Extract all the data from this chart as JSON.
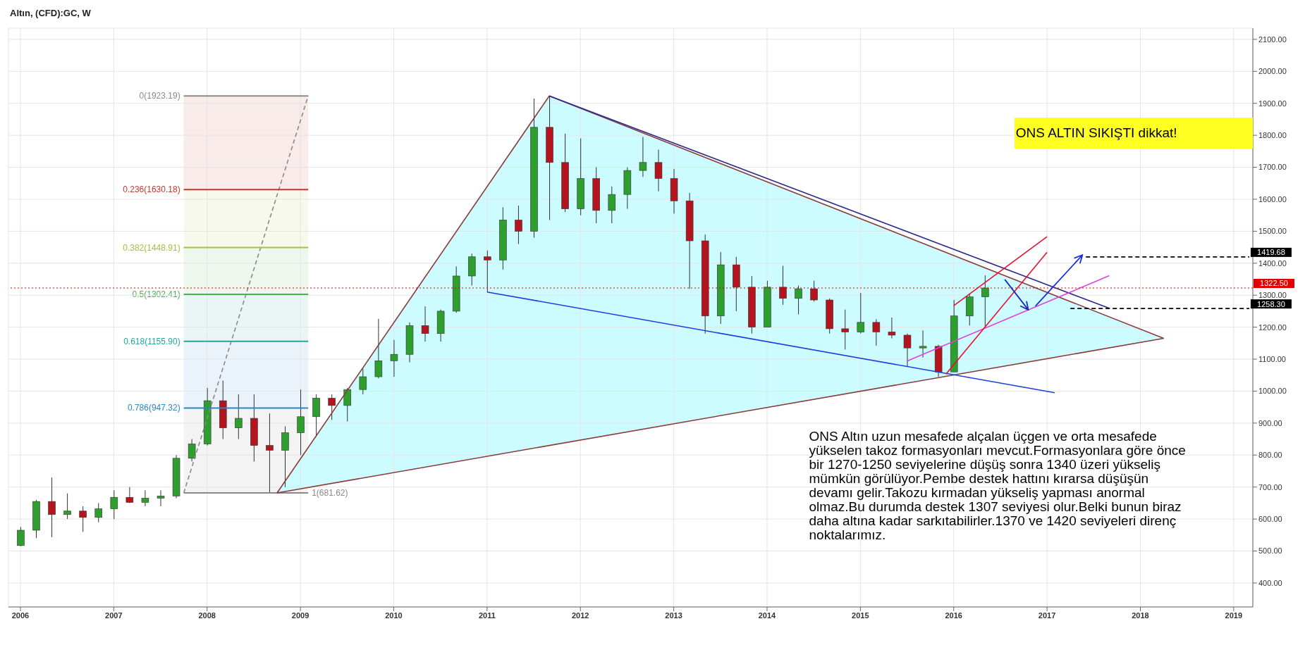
{
  "chart_data": {
    "type": "candlestick",
    "title": "Altın, (CFD):GC, W",
    "x": [
      "2006-01",
      "2006-03",
      "2006-05",
      "2006-07",
      "2006-09",
      "2006-11",
      "2007-01",
      "2007-03",
      "2007-05",
      "2007-07",
      "2007-09",
      "2007-11",
      "2008-01",
      "2008-03",
      "2008-05",
      "2008-07",
      "2008-09",
      "2008-11",
      "2009-01",
      "2009-03",
      "2009-05",
      "2009-07",
      "2009-09",
      "2009-11",
      "2010-01",
      "2010-03",
      "2010-05",
      "2010-07",
      "2010-09",
      "2010-11",
      "2011-01",
      "2011-03",
      "2011-05",
      "2011-07",
      "2011-09",
      "2011-11",
      "2012-01",
      "2012-03",
      "2012-05",
      "2012-07",
      "2012-09",
      "2012-11",
      "2013-01",
      "2013-03",
      "2013-05",
      "2013-07",
      "2013-09",
      "2013-11",
      "2014-01",
      "2014-03",
      "2014-05",
      "2014-07",
      "2014-09",
      "2014-11",
      "2015-01",
      "2015-03",
      "2015-05",
      "2015-07",
      "2015-09",
      "2015-11",
      "2016-01",
      "2016-03",
      "2016-05"
    ],
    "ohlc": [
      [
        517,
        575,
        515,
        565
      ],
      [
        565,
        660,
        540,
        655
      ],
      [
        655,
        730,
        543,
        614
      ],
      [
        614,
        680,
        600,
        625
      ],
      [
        625,
        640,
        560,
        605
      ],
      [
        605,
        650,
        590,
        632
      ],
      [
        632,
        690,
        600,
        668
      ],
      [
        668,
        700,
        650,
        652
      ],
      [
        652,
        690,
        640,
        665
      ],
      [
        665,
        690,
        640,
        672
      ],
      [
        672,
        800,
        665,
        790
      ],
      [
        790,
        850,
        780,
        835
      ],
      [
        835,
        1010,
        830,
        970
      ],
      [
        970,
        1033,
        850,
        885
      ],
      [
        885,
        990,
        850,
        915
      ],
      [
        915,
        990,
        780,
        830
      ],
      [
        830,
        930,
        680,
        815
      ],
      [
        815,
        890,
        700,
        870
      ],
      [
        870,
        1005,
        800,
        920
      ],
      [
        920,
        990,
        860,
        978
      ],
      [
        978,
        990,
        910,
        955
      ],
      [
        955,
        1010,
        905,
        1005
      ],
      [
        1005,
        1070,
        990,
        1045
      ],
      [
        1045,
        1226,
        1040,
        1095
      ],
      [
        1095,
        1160,
        1045,
        1115
      ],
      [
        1115,
        1215,
        1090,
        1205
      ],
      [
        1205,
        1265,
        1155,
        1180
      ],
      [
        1180,
        1255,
        1155,
        1250
      ],
      [
        1250,
        1390,
        1245,
        1360
      ],
      [
        1360,
        1430,
        1330,
        1420
      ],
      [
        1420,
        1440,
        1310,
        1410
      ],
      [
        1410,
        1575,
        1380,
        1535
      ],
      [
        1535,
        1580,
        1460,
        1500
      ],
      [
        1500,
        1915,
        1480,
        1825
      ],
      [
        1825,
        1923,
        1535,
        1715
      ],
      [
        1715,
        1805,
        1560,
        1570
      ],
      [
        1570,
        1790,
        1550,
        1665
      ],
      [
        1665,
        1700,
        1525,
        1565
      ],
      [
        1565,
        1640,
        1525,
        1615
      ],
      [
        1615,
        1700,
        1570,
        1690
      ],
      [
        1690,
        1795,
        1670,
        1715
      ],
      [
        1715,
        1755,
        1625,
        1665
      ],
      [
        1665,
        1695,
        1555,
        1595
      ],
      [
        1595,
        1620,
        1320,
        1470
      ],
      [
        1470,
        1490,
        1180,
        1235
      ],
      [
        1235,
        1435,
        1210,
        1395
      ],
      [
        1395,
        1420,
        1250,
        1325
      ],
      [
        1325,
        1360,
        1180,
        1200
      ],
      [
        1200,
        1345,
        1200,
        1325
      ],
      [
        1325,
        1392,
        1270,
        1290
      ],
      [
        1290,
        1330,
        1240,
        1320
      ],
      [
        1320,
        1345,
        1280,
        1285
      ],
      [
        1285,
        1290,
        1180,
        1195
      ],
      [
        1195,
        1255,
        1130,
        1185
      ],
      [
        1185,
        1307,
        1180,
        1215
      ],
      [
        1215,
        1225,
        1142,
        1185
      ],
      [
        1185,
        1230,
        1165,
        1175
      ],
      [
        1175,
        1180,
        1077,
        1135
      ],
      [
        1135,
        1190,
        1105,
        1140
      ],
      [
        1140,
        1145,
        1045,
        1060
      ],
      [
        1060,
        1285,
        1060,
        1235
      ],
      [
        1235,
        1305,
        1205,
        1295
      ],
      [
        1295,
        1362,
        1200,
        1322.5
      ]
    ],
    "series": [
      {
        "type": "line",
        "color": "#8a8a8a",
        "line_style": "dashed",
        "x": [
          "2007-10",
          "2009-02"
        ],
        "values": [
          681.62,
          1923.19
        ]
      },
      {
        "type": "line",
        "name": "0(1923.19)",
        "color": "#8a8a8a",
        "x": [
          "2007-10",
          "2009-02"
        ],
        "values": [
          1923.19,
          1923.19
        ]
      },
      {
        "type": "line",
        "name": "0.236(1630.18)",
        "color": "#c0392b",
        "x": [
          "2007-10",
          "2009-02"
        ],
        "values": [
          1630.18,
          1630.18
        ]
      },
      {
        "type": "line",
        "name": "0.382(1448.91)",
        "color": "#a4c339",
        "x": [
          "2007-10",
          "2009-02"
        ],
        "values": [
          1448.91,
          1448.91
        ]
      },
      {
        "type": "line",
        "name": "0.5(1302.41)",
        "color": "#4caf50",
        "x": [
          "2007-10",
          "2009-02"
        ],
        "values": [
          1302.41,
          1302.41
        ]
      },
      {
        "type": "line",
        "name": "0.618(1155.90)",
        "color": "#26a69a",
        "x": [
          "2007-10",
          "2009-02"
        ],
        "values": [
          1155.9,
          1155.9
        ]
      },
      {
        "type": "line",
        "name": "0.786(947.32)",
        "color": "#2e86c1",
        "x": [
          "2007-10",
          "2009-02"
        ],
        "values": [
          947.32,
          947.32
        ]
      },
      {
        "type": "line",
        "name": "1(681.62)",
        "color": "#8a8a8a",
        "x": [
          "2007-10",
          "2009-02"
        ],
        "values": [
          681.62,
          681.62
        ]
      },
      {
        "type": "line",
        "color": "#8b3a3a",
        "x": [
          "2008-10",
          "2011-09",
          "2018-04"
        ],
        "values": [
          681.62,
          1923.19,
          1165
        ]
      },
      {
        "type": "line",
        "color": "#8b3a3a",
        "x": [
          "2008-10",
          "2018-04"
        ],
        "values": [
          681.62,
          1165
        ]
      },
      {
        "type": "line",
        "color": "#2a2a8c",
        "x": [
          "2011-09",
          "2017-09"
        ],
        "values": [
          1923.19,
          1259
        ]
      },
      {
        "type": "line",
        "color": "#1a3fe0",
        "x": [
          "2011-01",
          "2017-02"
        ],
        "values": [
          1310,
          995
        ]
      },
      {
        "type": "line",
        "color": "#e040e0",
        "x": [
          "2015-07",
          "2017-09"
        ],
        "values": [
          1094,
          1361
        ]
      },
      {
        "type": "line",
        "color": "#e8102e",
        "x": [
          "2016-01",
          "2017-01"
        ],
        "values": [
          1267,
          1483
        ]
      },
      {
        "type": "line",
        "color": "#e8102e",
        "x": [
          "2015-12",
          "2017-01"
        ],
        "values": [
          1053,
          1434
        ]
      },
      {
        "type": "line",
        "color": "#000000",
        "line_style": "dashed",
        "x": [
          "2017-06",
          "2019-03"
        ],
        "values": [
          1419.68,
          1419.68
        ]
      },
      {
        "type": "line",
        "color": "#000000",
        "line_style": "dashed",
        "x": [
          "2017-04",
          "2019-03"
        ],
        "values": [
          1258.3,
          1258.3
        ]
      }
    ],
    "ref_lines": [
      {
        "axis": "y",
        "value": 1322.5,
        "label": "1322.50",
        "color": "#e00000",
        "line_style": "dotted"
      }
    ],
    "annotations": [
      "ONS ALTIN SIKIŞTI dikkat!",
      "ONS Altın uzun mesafede alçalan üçgen ve orta mesafede yükselen takoz formasyonları mevcut.Formasyonlara göre önce bir 1270-1250 seviyelerine düşüş sonra 1340 üzeri yükseliş mümkün görülüyor.Pembe destek hattını kırarsa düşüşün devamı gelir.Takozu kırmadan yükseliş yapması anormal olmaz.Bu durumda destek 1307 seviyesi olur.Belki bunun biraz daha altına kadar sarkıtabilirler.1370 ve 1420 seviyeleri direnç noktalarımız.",
      {
        "text": "1419.68",
        "x": "2019-03",
        "y": 1419.68
      },
      {
        "text": "1258.30",
        "x": "2019-03",
        "y": 1258.3
      }
    ],
    "xlim": [
      "2005-11-15",
      "2019-03-15"
    ],
    "xticks": [
      "2006",
      "2007",
      "2008",
      "2009",
      "2010",
      "2011",
      "2012",
      "2013",
      "2014",
      "2015",
      "2016",
      "2017",
      "2018",
      "2019"
    ],
    "ylim": [
      325,
      2135
    ],
    "yticks": [
      {
        "value": 400,
        "label": "400.00"
      },
      {
        "value": 500,
        "label": "500.00"
      },
      {
        "value": 600,
        "label": "600.00"
      },
      {
        "value": 700,
        "label": "700.00"
      },
      {
        "value": 800,
        "label": "800.00"
      },
      {
        "value": 900,
        "label": "900.00"
      },
      {
        "value": 1000,
        "label": "1000.00"
      },
      {
        "value": 1100,
        "label": "1100.00"
      },
      {
        "value": 1200,
        "label": "1200.00"
      },
      {
        "value": 1300,
        "label": "1300.00"
      },
      {
        "value": 1400,
        "label": "1400.00"
      },
      {
        "value": 1500,
        "label": "1500.00"
      },
      {
        "value": 1600,
        "label": "1600.00"
      },
      {
        "value": 1700,
        "label": "1700.00"
      },
      {
        "value": 1800,
        "label": "1800.00"
      },
      {
        "value": 1900,
        "label": "1900.00"
      },
      {
        "value": 2000,
        "label": "2000.00"
      },
      {
        "value": 2100,
        "label": "2100.00"
      }
    ],
    "grid": true,
    "marker": "none"
  }
}
